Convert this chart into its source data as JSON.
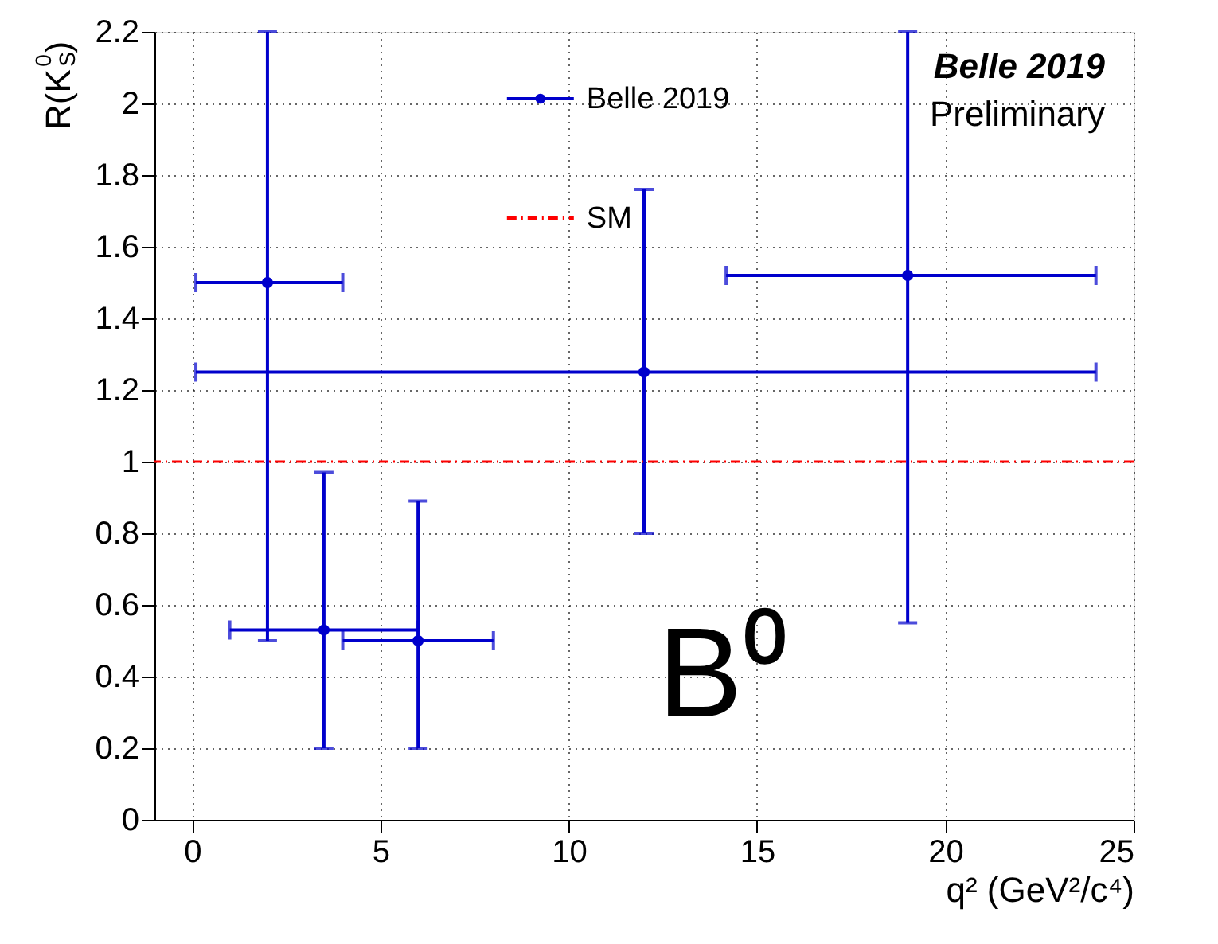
{
  "chart_data": {
    "type": "scatter",
    "xlabel": "q² (GeV²/c⁴)",
    "ylabel": "R(K$_{S}$$^{0}$)",
    "x": [
      2,
      3.5,
      6,
      12,
      19
    ],
    "series": [
      {
        "name": "Belle 2019",
        "color": "#0000cc",
        "values": [
          1.5,
          0.53,
          0.5,
          1.25,
          1.52
        ],
        "errors": [
          [
            0.5,
            2.2
          ],
          [
            0.2,
            0.97
          ],
          [
            0.2,
            0.89
          ],
          [
            0.8,
            1.76
          ],
          [
            0.55,
            2.2
          ]
        ],
        "xerrors": [
          [
            0.1,
            4
          ],
          [
            1,
            6
          ],
          [
            4,
            8
          ],
          [
            0.1,
            24
          ],
          [
            14.18,
            24
          ]
        ]
      }
    ],
    "xlim": [
      -1,
      25
    ],
    "xticks": [
      0,
      5,
      10,
      15,
      20,
      25
    ],
    "ylim": [
      0,
      2.2
    ],
    "yticks": [
      0,
      0.2,
      0.4,
      0.6,
      0.8,
      1,
      1.2,
      1.4,
      1.6,
      1.8,
      2,
      2.2
    ],
    "ref_lines": [
      {
        "axis": "y",
        "value": 1,
        "label": "SM",
        "color": "#ff0000",
        "line_style": "dashed"
      }
    ],
    "annotations": [
      "Belle 2019",
      "Preliminary",
      "B⁰"
    ],
    "grid": true,
    "legend": "top",
    "marker": "circle",
    "line_style": "solid"
  }
}
